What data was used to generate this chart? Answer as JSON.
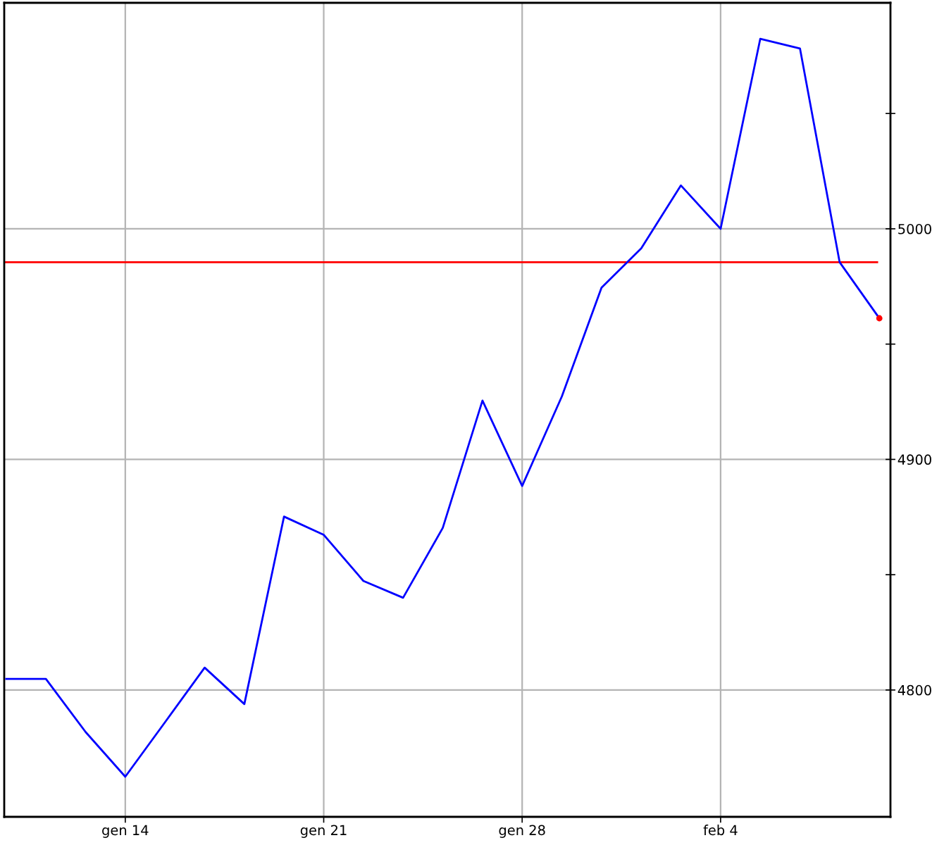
{
  "chart_data": {
    "type": "line",
    "categories": [
      null,
      null,
      null,
      "gen 14",
      null,
      null,
      null,
      null,
      "gen 21",
      null,
      null,
      null,
      null,
      "gen 28",
      null,
      null,
      null,
      null,
      "feb 4",
      null,
      null,
      null,
      null
    ],
    "series": [
      {
        "color": "#0000ff",
        "values": [
          4804.8,
          4804.8,
          4781.8,
          4762.4,
          4786,
          4809.7,
          4793.9,
          4875.2,
          4867.3,
          4847.3,
          4840.0,
          4870.3,
          4925.5,
          4888.5,
          4927.3,
          4974.5,
          4991.5,
          5018.8,
          5000,
          5082.4,
          5078.2,
          4985.5,
          4961.2
        ]
      },
      {
        "type": "scatter",
        "color": "#ff0000",
        "values": [
          null,
          null,
          null,
          null,
          null,
          null,
          null,
          null,
          null,
          null,
          null,
          null,
          null,
          null,
          null,
          null,
          null,
          null,
          null,
          null,
          null,
          null,
          4961.2
        ]
      }
    ],
    "ylim": [
      4745,
      5098
    ],
    "yticks": [
      4800,
      {
        "value": 4850,
        "label": null
      },
      4900,
      {
        "value": 4950,
        "label": null
      },
      5000,
      {
        "value": 5050,
        "label": null
      }
    ],
    "ref_lines": [
      {
        "axis": "y",
        "value": 4985.5,
        "color": "#ff0000"
      }
    ],
    "grid": true
  }
}
